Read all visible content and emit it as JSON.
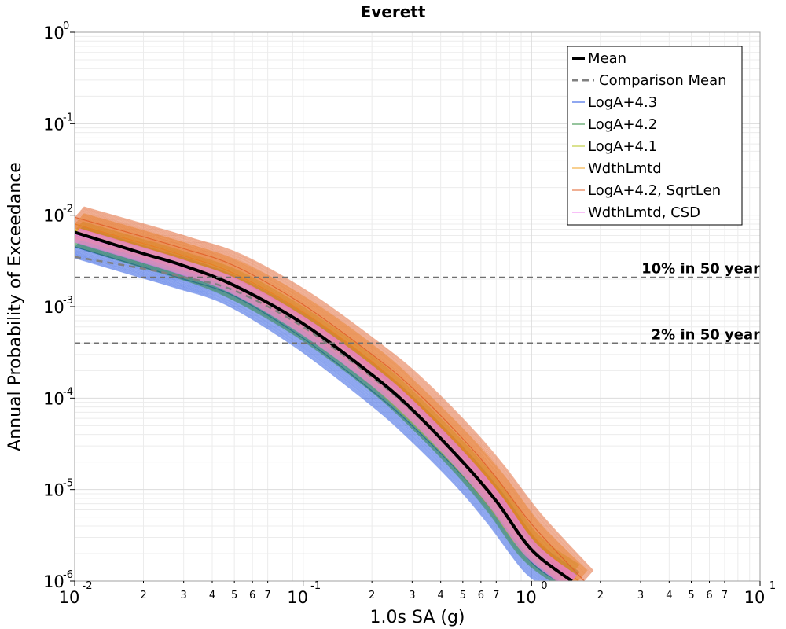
{
  "chart_data": {
    "type": "line",
    "title": "Everett",
    "xlabel": "1.0s SA (g)",
    "ylabel": "Annual Probability of Exceedance",
    "xscale": "log",
    "yscale": "log",
    "xlim": [
      0.01,
      10
    ],
    "ylim": [
      1e-06,
      1
    ],
    "grid": true,
    "x_major_ticks": [
      {
        "base": "10",
        "exp": "-2"
      },
      {
        "base": "10",
        "exp": "-1"
      },
      {
        "base": "10",
        "exp": "0"
      },
      {
        "base": "10",
        "exp": "1"
      }
    ],
    "y_major_ticks": [
      {
        "base": "10",
        "exp": "0"
      },
      {
        "base": "10",
        "exp": "-1"
      },
      {
        "base": "10",
        "exp": "-2"
      },
      {
        "base": "10",
        "exp": "-3"
      },
      {
        "base": "10",
        "exp": "-4"
      },
      {
        "base": "10",
        "exp": "-5"
      },
      {
        "base": "10",
        "exp": "-6"
      }
    ],
    "x_minor_labels": [
      "2",
      "3",
      "4",
      "5",
      "6",
      "7"
    ],
    "hazard_levels": [
      {
        "label": "10% in 50 year",
        "y": 0.0021
      },
      {
        "label": "2% in 50 year",
        "y": 0.0004
      }
    ],
    "legend_position": "top-right",
    "legend": [
      {
        "label": "Mean",
        "color": "#000000",
        "style": "thick"
      },
      {
        "label": "Comparison Mean",
        "color": "#808080",
        "style": "dashed"
      },
      {
        "label": "LogA+4.3",
        "color": "#1f4fe0",
        "style": "thin"
      },
      {
        "label": "LogA+4.2",
        "color": "#2e8b3e",
        "style": "thin"
      },
      {
        "label": "LogA+4.1",
        "color": "#b5c41f",
        "style": "thin"
      },
      {
        "label": "WdthLmtd",
        "color": "#f0a020",
        "style": "thin"
      },
      {
        "label": "LogA+4.2, SqrtLen",
        "color": "#e0602a",
        "style": "thin"
      },
      {
        "label": "WdthLmtd, CSD",
        "color": "#f080f0",
        "style": "thin"
      }
    ],
    "series": [
      {
        "name": "Mean",
        "x": [
          0.01,
          0.02,
          0.03,
          0.05,
          0.1,
          0.2,
          0.3,
          0.5,
          0.7,
          1.0,
          1.5
        ],
        "y": [
          0.0065,
          0.0038,
          0.0028,
          0.0017,
          0.00065,
          0.00018,
          7.5e-05,
          2e-05,
          7.5e-06,
          2.2e-06,
          1e-06
        ]
      },
      {
        "name": "Comparison Mean",
        "x": [
          0.01,
          0.02,
          0.03,
          0.05,
          0.1,
          0.2,
          0.3,
          0.5,
          0.7,
          1.0,
          1.5
        ],
        "y": [
          0.0035,
          0.0026,
          0.0021,
          0.0015,
          0.0006,
          0.00017,
          7.2e-05,
          2e-05,
          7.5e-06,
          2.2e-06,
          1e-06
        ]
      },
      {
        "name": "LogA+4.3",
        "x": [
          0.01,
          0.02,
          0.03,
          0.05,
          0.1,
          0.2,
          0.3,
          0.5,
          0.7,
          1.0,
          1.3
        ],
        "y": [
          0.0045,
          0.0027,
          0.002,
          0.0013,
          0.00045,
          0.00012,
          5e-05,
          1.4e-05,
          5.2e-06,
          1.6e-06,
          1e-06
        ],
        "spread": {
          "lo": 0.8,
          "hi": 1.3
        }
      },
      {
        "name": "LogA+4.2",
        "x": [
          0.01,
          0.02,
          0.03,
          0.05,
          0.1,
          0.2,
          0.3,
          0.5,
          0.7,
          1.0,
          1.5
        ],
        "y": [
          0.006,
          0.0035,
          0.0026,
          0.0016,
          0.0006,
          0.00017,
          7e-05,
          1.9e-05,
          7e-06,
          2.1e-06,
          1e-06
        ],
        "spread": {
          "lo": 0.8,
          "hi": 1.25
        }
      },
      {
        "name": "LogA+4.1",
        "x": [
          0.01,
          0.02,
          0.03,
          0.05,
          0.1,
          0.2,
          0.3,
          0.5,
          0.7,
          1.0,
          1.5
        ],
        "y": [
          0.0068,
          0.0041,
          0.003,
          0.0019,
          0.0007,
          0.0002,
          8e-05,
          2.2e-05,
          8.2e-06,
          2.5e-06,
          1.2e-06
        ],
        "spread": {
          "lo": 0.8,
          "hi": 1.25
        }
      },
      {
        "name": "WdthLmtd",
        "x": [
          0.01,
          0.02,
          0.03,
          0.05,
          0.1,
          0.2,
          0.3,
          0.5,
          0.7,
          1.0,
          1.6
        ],
        "y": [
          0.008,
          0.0049,
          0.0036,
          0.0023,
          0.00087,
          0.00025,
          0.0001,
          2.8e-05,
          1.05e-05,
          3.2e-06,
          1e-06
        ],
        "spread": {
          "lo": 0.75,
          "hi": 1.3
        }
      },
      {
        "name": "LogA+4.2, SqrtLen",
        "x": [
          0.01,
          0.02,
          0.03,
          0.05,
          0.1,
          0.2,
          0.3,
          0.5,
          0.7,
          1.0,
          1.7
        ],
        "y": [
          0.0095,
          0.0058,
          0.0043,
          0.0028,
          0.00105,
          0.0003,
          0.00013,
          3.6e-05,
          1.35e-05,
          4.2e-06,
          1e-06
        ],
        "spread": {
          "lo": 0.8,
          "hi": 1.3
        }
      },
      {
        "name": "WdthLmtd, CSD",
        "x": [
          0.01,
          0.02,
          0.03,
          0.05,
          0.1,
          0.2,
          0.3,
          0.5,
          0.7,
          1.0,
          1.5
        ],
        "y": [
          0.0062,
          0.0037,
          0.0027,
          0.0017,
          0.00063,
          0.00018,
          7.4e-05,
          2e-05,
          7.4e-06,
          2.2e-06,
          1e-06
        ],
        "spread": {
          "lo": 0.85,
          "hi": 1.15
        }
      }
    ]
  }
}
